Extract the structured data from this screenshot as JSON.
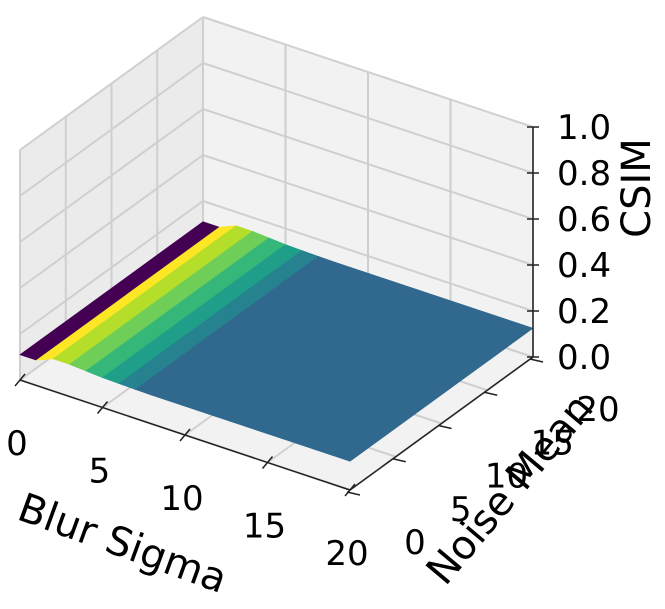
{
  "chart_data": {
    "type": "surface3d",
    "xlabel": "Blur Sigma",
    "ylabel": "Noise Mean",
    "zlabel": "CSIM",
    "xlim": [
      0,
      20
    ],
    "ylim": [
      0,
      20
    ],
    "zlim": [
      0,
      1.0
    ],
    "x_ticks": [
      "0",
      "5",
      "10",
      "15",
      "20"
    ],
    "y_ticks": [
      "0",
      "5",
      "10",
      "15",
      "20"
    ],
    "z_ticks": [
      "0.0",
      "0.2",
      "0.4",
      "0.6",
      "0.8",
      "1.0"
    ],
    "grid": true,
    "colormap": "viridis",
    "surface": {
      "x": [
        0,
        1,
        2,
        3,
        4,
        5,
        6,
        7,
        8,
        9,
        10,
        11,
        12,
        13,
        14,
        15,
        16,
        17,
        18,
        19,
        20
      ],
      "csim_by_x": [
        0.11,
        0.11,
        0.14,
        0.14,
        0.135,
        0.13,
        0.128,
        0.126,
        0.125,
        0.125,
        0.125,
        0.125,
        0.125,
        0.125,
        0.125,
        0.125,
        0.125,
        0.125,
        0.125,
        0.125,
        0.125
      ],
      "csim_constant_over_noise_mean": true
    },
    "band_colors": [
      "#440154",
      "#fde725",
      "#b5de2b",
      "#6ece58",
      "#35b779",
      "#1f9e89",
      "#26828e",
      "#31688e"
    ]
  }
}
